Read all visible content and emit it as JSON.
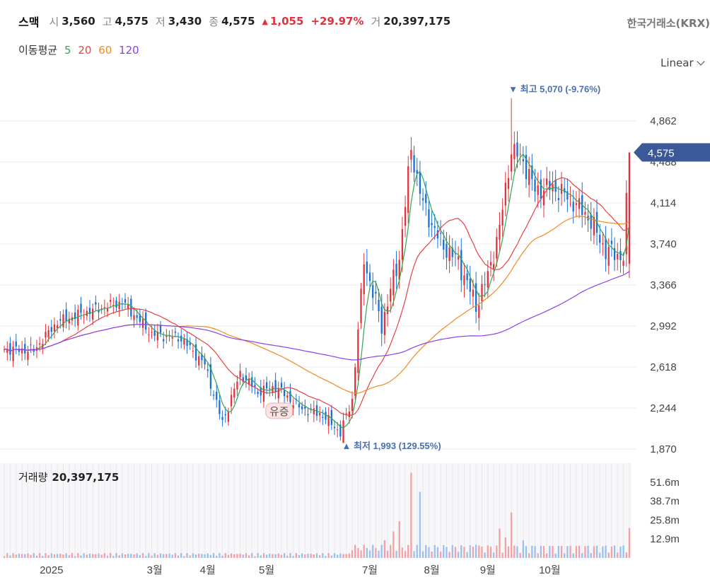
{
  "header": {
    "name": "스맥",
    "open_label": "시",
    "open": "3,560",
    "high_label": "고",
    "high": "4,575",
    "low_label": "저",
    "low": "3,430",
    "close_label": "종",
    "close": "4,575",
    "change_icon": "up-triangle-icon",
    "change": "1,055",
    "change_pct": "+29.97%",
    "vol_label": "거",
    "volume": "20,397,175",
    "exchange": "한국거래소(KRX)"
  },
  "ma_legend": {
    "label": "이동평균",
    "items": [
      {
        "period": "5",
        "color": "#2fa84f"
      },
      {
        "period": "20",
        "color": "#e8413f"
      },
      {
        "period": "60",
        "color": "#f08a1e"
      },
      {
        "period": "120",
        "color": "#8d3ff0"
      }
    ]
  },
  "scale_select": "Linear",
  "annotations": {
    "high": "▼ 최고 5,070 (-9.76%)",
    "low": "▲ 최저 1,993 (129.55%)",
    "event": "유증"
  },
  "price_tag": "4,575",
  "volume_panel": {
    "label": "거래량",
    "value": "20,397,175"
  },
  "colors": {
    "up": "#e0333d",
    "down": "#1a6fd6",
    "tag_bg": "#3b5998"
  },
  "chart_data": [
    {
      "type": "candlestick",
      "x_ticks": [
        "2025",
        "3월",
        "4월",
        "5월",
        "7월",
        "8월",
        "9월",
        "10월"
      ],
      "y_ticks": [
        "4,862",
        "4,488",
        "4,114",
        "3,740",
        "3,366",
        "2,992",
        "2,618",
        "2,244",
        "1,870"
      ],
      "ylim": [
        1870,
        5236
      ],
      "grid": true,
      "series_close_anchors": [
        [
          0,
          2780
        ],
        [
          10,
          2770
        ],
        [
          18,
          3030
        ],
        [
          28,
          3120
        ],
        [
          40,
          3210
        ],
        [
          50,
          2920
        ],
        [
          60,
          2880
        ],
        [
          68,
          2640
        ],
        [
          74,
          2110
        ],
        [
          80,
          2560
        ],
        [
          86,
          2390
        ],
        [
          92,
          2440
        ],
        [
          100,
          2250
        ],
        [
          108,
          2180
        ],
        [
          114,
          2020
        ],
        [
          118,
          2320
        ],
        [
          122,
          3600
        ],
        [
          128,
          3000
        ],
        [
          134,
          3620
        ],
        [
          138,
          4600
        ],
        [
          142,
          4100
        ],
        [
          148,
          3750
        ],
        [
          154,
          3580
        ],
        [
          160,
          3180
        ],
        [
          164,
          3450
        ],
        [
          168,
          3880
        ],
        [
          172,
          4600
        ],
        [
          176,
          4500
        ],
        [
          180,
          4230
        ],
        [
          186,
          4260
        ],
        [
          192,
          4150
        ],
        [
          198,
          3990
        ],
        [
          204,
          3680
        ],
        [
          210,
          3620
        ],
        [
          212,
          4575
        ]
      ],
      "moving_averages": [
        {
          "name": "5",
          "color": "#2fa84f"
        },
        {
          "name": "20",
          "color": "#e8413f"
        },
        {
          "name": "60",
          "color": "#f08a1e"
        },
        {
          "name": "120",
          "color": "#8d3ff0"
        }
      ],
      "last_close": 4575,
      "period_high": 5070,
      "period_low": 1993
    },
    {
      "type": "bar",
      "name": "거래량",
      "y_ticks": [
        "51.6m",
        "38.7m",
        "25.8m",
        "12.9m"
      ],
      "notable_values_m": [
        {
          "position": "7월 spike",
          "value": 58
        },
        {
          "position": "7월 second",
          "value": 25
        },
        {
          "position": "9월 high",
          "value": 31
        },
        {
          "position": "last",
          "value": 20.4
        }
      ]
    }
  ]
}
